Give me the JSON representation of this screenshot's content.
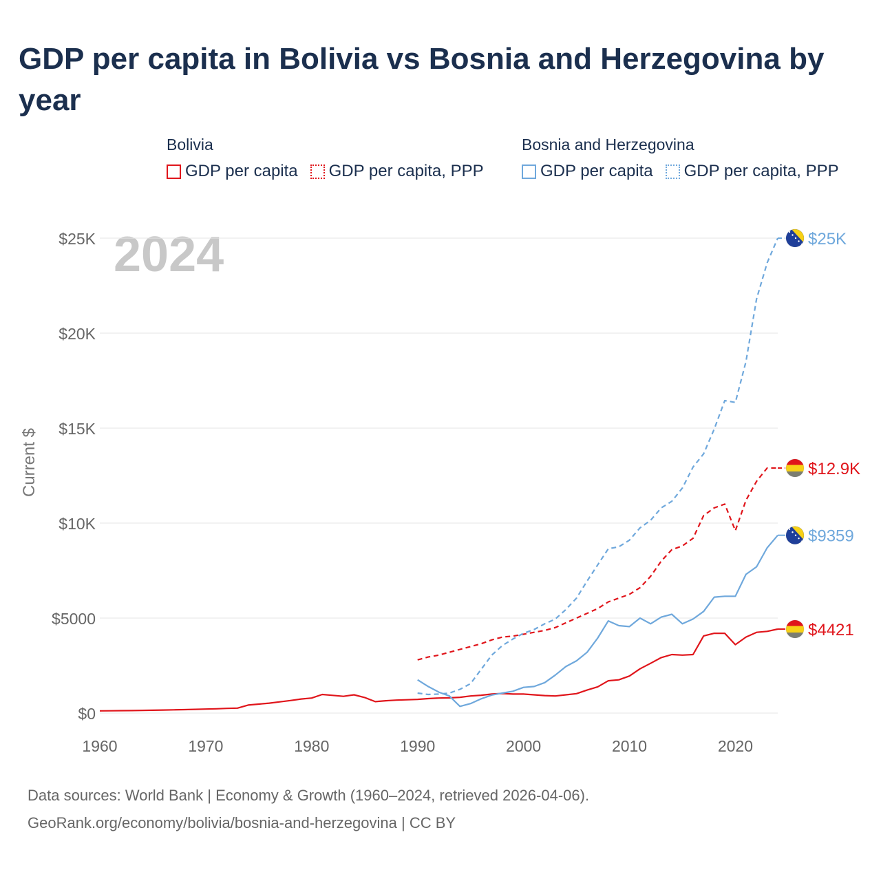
{
  "title": "GDP per capita in Bolivia vs Bosnia and Herzegovina by year",
  "legend": {
    "groups": [
      {
        "name": "Bolivia",
        "color": "#e0151b",
        "items": [
          "GDP per capita",
          "GDP per capita, PPP"
        ]
      },
      {
        "name": "Bosnia and Herzegovina",
        "color": "#6fa8dc",
        "items": [
          "GDP per capita",
          "GDP per capita, PPP"
        ]
      }
    ]
  },
  "year_watermark": "2024",
  "sources": {
    "line1": "Data sources: World Bank | Economy & Growth (1960–2024, retrieved 2026-04-06).",
    "line2": "GeoRank.org/economy/bolivia/bosnia-and-herzegovina | CC BY"
  },
  "chart_data": {
    "type": "line",
    "title": "GDP per capita in Bolivia vs Bosnia and Herzegovina by year",
    "xlabel": "",
    "ylabel": "Current $",
    "xlim": [
      1960,
      2024
    ],
    "ylim": [
      0,
      25000
    ],
    "x_ticks": [
      {
        "value": 1960,
        "label": "1960"
      },
      {
        "value": 1970,
        "label": "1970"
      },
      {
        "value": 1980,
        "label": "1980"
      },
      {
        "value": 1990,
        "label": "1990"
      },
      {
        "value": 2000,
        "label": "2000"
      },
      {
        "value": 2010,
        "label": "2010"
      },
      {
        "value": 2020,
        "label": "2020"
      }
    ],
    "y_ticks": [
      {
        "value": 0,
        "label": "$0"
      },
      {
        "value": 5000,
        "label": "$5000"
      },
      {
        "value": 10000,
        "label": "$10K"
      },
      {
        "value": 15000,
        "label": "$15K"
      },
      {
        "value": 20000,
        "label": "$20K"
      },
      {
        "value": 25000,
        "label": "$25K"
      }
    ],
    "grid": true,
    "legend_position": "top",
    "series": [
      {
        "name": "Bolivia GDP per capita",
        "country": "Bolivia",
        "color": "#e0151b",
        "dash": false,
        "end_label": "$4421",
        "flag": "bolivia",
        "x": [
          1960,
          1961,
          1962,
          1963,
          1964,
          1965,
          1966,
          1967,
          1968,
          1969,
          1970,
          1971,
          1972,
          1973,
          1974,
          1975,
          1976,
          1977,
          1978,
          1979,
          1980,
          1981,
          1982,
          1983,
          1984,
          1985,
          1986,
          1987,
          1988,
          1989,
          1990,
          1991,
          1992,
          1993,
          1994,
          1995,
          1996,
          1997,
          1998,
          1999,
          2000,
          2001,
          2002,
          2003,
          2004,
          2005,
          2006,
          2007,
          2008,
          2009,
          2010,
          2011,
          2012,
          2013,
          2014,
          2015,
          2016,
          2017,
          2018,
          2019,
          2020,
          2021,
          2022,
          2023,
          2024
        ],
        "values": [
          115,
          120,
          125,
          130,
          140,
          150,
          160,
          170,
          180,
          195,
          210,
          225,
          245,
          260,
          420,
          470,
          520,
          590,
          660,
          740,
          790,
          980,
          930,
          880,
          960,
          820,
          600,
          650,
          680,
          700,
          720,
          760,
          790,
          800,
          830,
          900,
          940,
          1000,
          1030,
          1000,
          1000,
          960,
          920,
          900,
          960,
          1020,
          1210,
          1380,
          1700,
          1750,
          1950,
          2330,
          2620,
          2920,
          3080,
          3050,
          3080,
          4060,
          4200,
          4200,
          3600,
          4000,
          4250,
          4300,
          4421
        ]
      },
      {
        "name": "Bolivia GDP per capita, PPP",
        "country": "Bolivia",
        "color": "#e0151b",
        "dash": true,
        "end_label": "$12.9K",
        "flag": "bolivia",
        "x": [
          1990,
          1991,
          1992,
          1993,
          1994,
          1995,
          1996,
          1997,
          1998,
          1999,
          2000,
          2001,
          2002,
          2003,
          2004,
          2005,
          2006,
          2007,
          2008,
          2009,
          2010,
          2011,
          2012,
          2013,
          2014,
          2015,
          2016,
          2017,
          2018,
          2019,
          2020,
          2021,
          2022,
          2023,
          2024
        ],
        "values": [
          2800,
          2950,
          3050,
          3200,
          3350,
          3500,
          3650,
          3850,
          4000,
          4050,
          4150,
          4250,
          4350,
          4500,
          4750,
          5000,
          5250,
          5500,
          5850,
          6050,
          6250,
          6600,
          7200,
          8000,
          8600,
          8800,
          9200,
          10400,
          10800,
          11000,
          9600,
          11200,
          12200,
          12900,
          12900
        ]
      },
      {
        "name": "Bosnia and Herzegovina GDP per capita",
        "country": "Bosnia and Herzegovina",
        "color": "#6fa8dc",
        "dash": false,
        "end_label": "$9359",
        "flag": "bosnia",
        "x": [
          1990,
          1991,
          1992,
          1993,
          1994,
          1995,
          1996,
          1997,
          1998,
          1999,
          2000,
          2001,
          2002,
          2003,
          2004,
          2005,
          2006,
          2007,
          2008,
          2009,
          2010,
          2011,
          2012,
          2013,
          2014,
          2015,
          2016,
          2017,
          2018,
          2019,
          2020,
          2021,
          2022,
          2023,
          2024
        ],
        "values": [
          1750,
          1400,
          1100,
          900,
          350,
          500,
          750,
          950,
          1050,
          1150,
          1350,
          1400,
          1600,
          2000,
          2450,
          2750,
          3200,
          3950,
          4850,
          4600,
          4550,
          5000,
          4700,
          5050,
          5200,
          4700,
          4950,
          5350,
          6100,
          6150,
          6150,
          7300,
          7700,
          8700,
          9359
        ]
      },
      {
        "name": "Bosnia and Herzegovina GDP per capita, PPP",
        "country": "Bosnia and Herzegovina",
        "color": "#6fa8dc",
        "dash": true,
        "end_label": "$25K",
        "flag": "bosnia",
        "x": [
          1990,
          1991,
          1992,
          1993,
          1994,
          1995,
          1996,
          1997,
          1998,
          1999,
          2000,
          2001,
          2002,
          2003,
          2004,
          2005,
          2006,
          2007,
          2008,
          2009,
          2010,
          2011,
          2012,
          2013,
          2014,
          2015,
          2016,
          2017,
          2018,
          2019,
          2020,
          2021,
          2022,
          2023,
          2024
        ],
        "values": [
          1050,
          980,
          1000,
          1050,
          1250,
          1550,
          2300,
          3050,
          3550,
          3900,
          4200,
          4400,
          4700,
          4950,
          5450,
          6050,
          6950,
          7800,
          8650,
          8750,
          9100,
          9750,
          10150,
          10800,
          11150,
          11850,
          12950,
          13650,
          14950,
          16450,
          16350,
          18500,
          21800,
          23700,
          25000
        ]
      }
    ]
  }
}
